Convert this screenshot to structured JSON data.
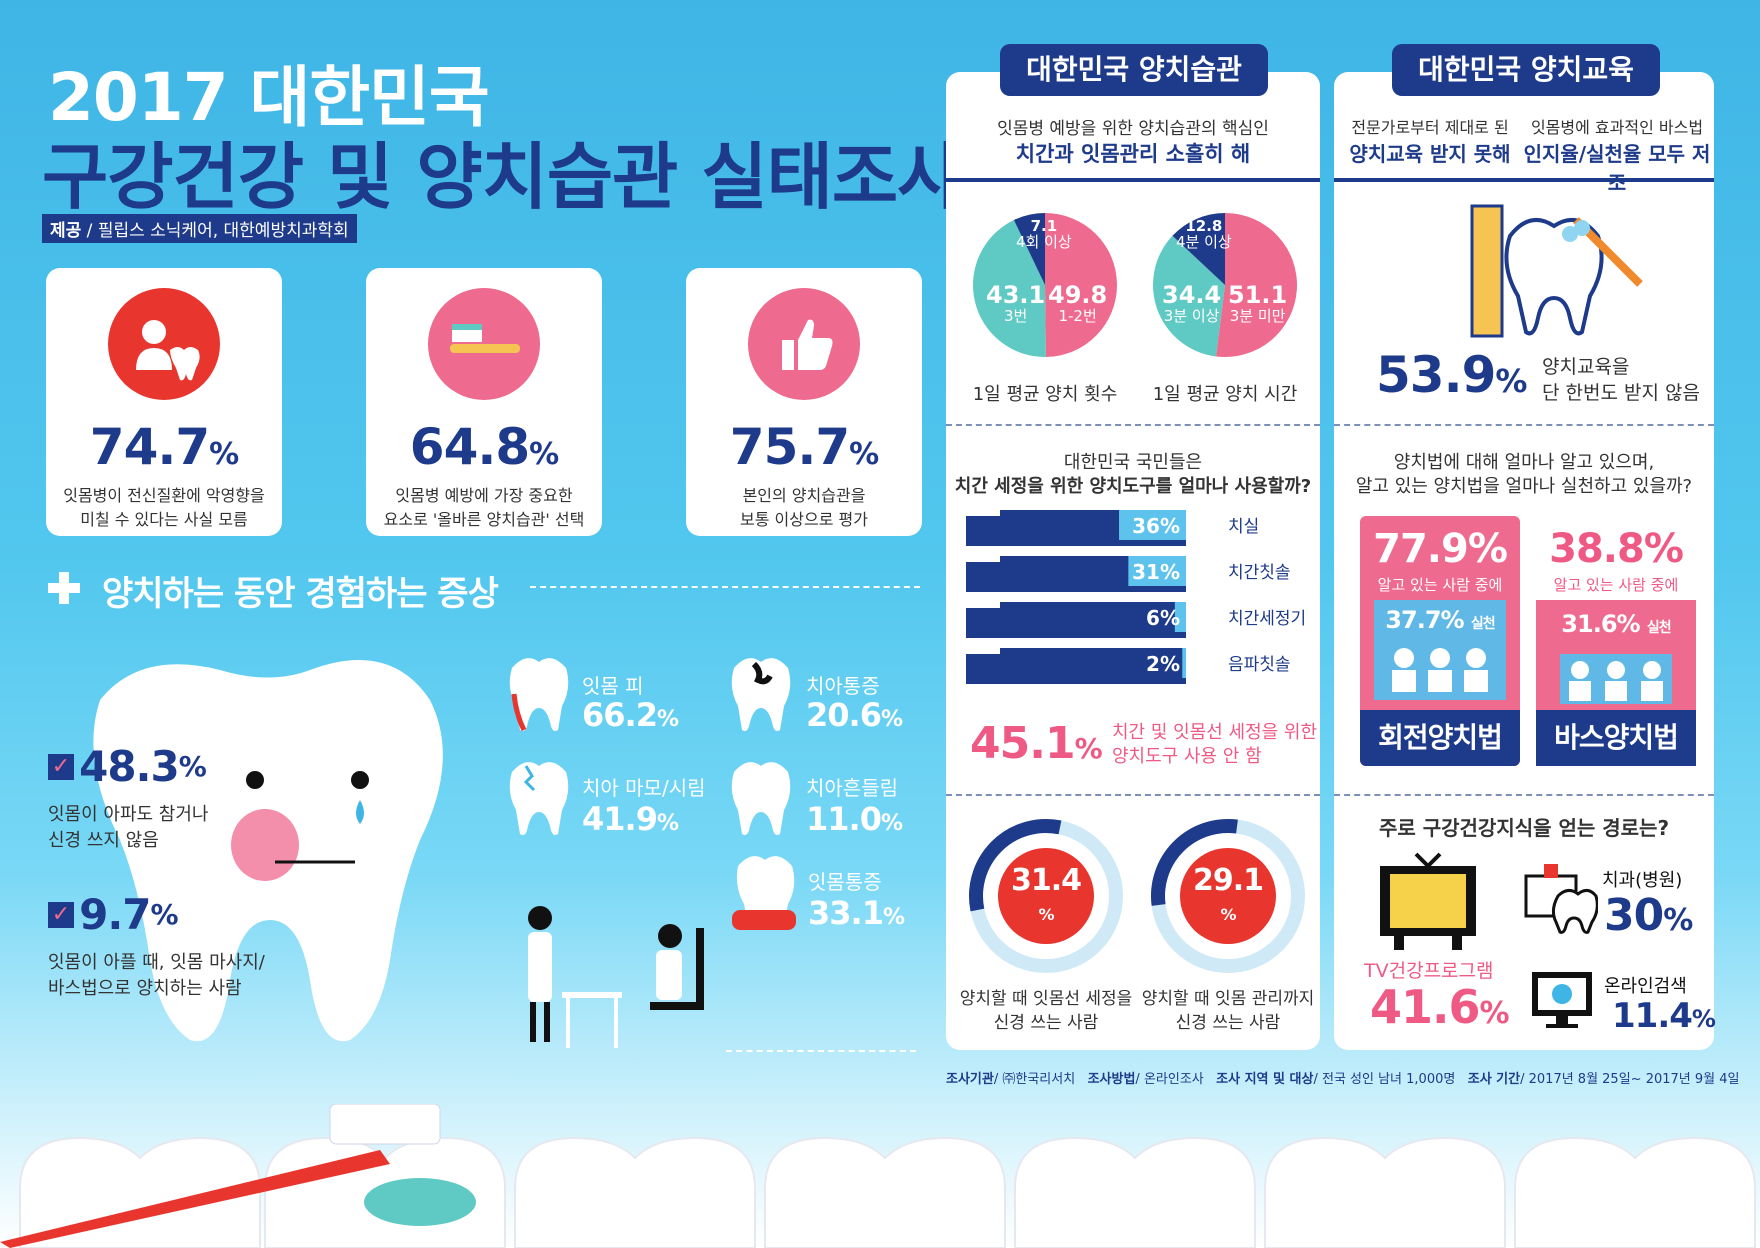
{
  "header": {
    "title_line1": "2017 대한민국",
    "title_line2": "구강건강 및 양치습관 실태조사",
    "source_label": "제공",
    "source_text": "필립스 소닉케어, 대한예방치과학회"
  },
  "stats": [
    {
      "value": "74.7",
      "unit": "%",
      "line1": "잇몸병이 전신질환에 악영향을",
      "line2": "미칠 수 있다는 사실 모름",
      "icon": "person-tooth-icon"
    },
    {
      "value": "64.8",
      "unit": "%",
      "line1": "잇몸병 예방에 가장 중요한",
      "line2": "요소로 '올바른 양치습관' 선택",
      "icon": "toothbrush-icon"
    },
    {
      "value": "75.7",
      "unit": "%",
      "line1": "본인의 양치습관을",
      "line2": "보통 이상으로 평가",
      "icon": "thumbs-up-icon"
    }
  ],
  "symptoms": {
    "heading": "양치하는 동안 경험하는 증상",
    "checks": [
      {
        "value": "48.3",
        "unit": "%",
        "line1": "잇몸이 아파도 참거나",
        "line2": "신경 쓰지 않음"
      },
      {
        "value": "9.7",
        "unit": "%",
        "line1": "잇몸이 아플 때, 잇몸 마사지/",
        "line2": "바스법으로 양치하는 사람"
      }
    ],
    "items": [
      {
        "label": "잇몸 피",
        "value": "66.2",
        "unit": "%"
      },
      {
        "label": "치아통증",
        "value": "20.6",
        "unit": "%"
      },
      {
        "label": "치아 마모/시림",
        "value": "41.9",
        "unit": "%"
      },
      {
        "label": "치아흔들림",
        "value": "11.0",
        "unit": "%"
      },
      {
        "label": "잇몸통증",
        "value": "33.1",
        "unit": "%"
      }
    ]
  },
  "habits": {
    "tab": "대한민국 양치습관",
    "sub1": "잇몸병 예방을 위한 양치습관의 핵심인",
    "sub2": "치간과 잇몸관리 소홀히 해",
    "pie1_caption": "1일 평균 양치 횟수",
    "pie2_caption": "1일 평균 양치 시간",
    "tools_q1": "대한민국 국민들은",
    "tools_q2": "치간 세정을 위한 양치도구를 얼마나 사용할까?",
    "no_tool_value": "45.1",
    "no_tool_unit": "%",
    "no_tool_line1": "치간 및 잇몸선 세정을 위한",
    "no_tool_line2": "양치도구 사용 안 함",
    "donut1_value": "31.4",
    "donut1_line1": "양치할 때 잇몸선 세정을",
    "donut1_line2": "신경 쓰는 사람",
    "donut2_value": "29.1",
    "donut2_line1": "양치할 때 잇몸 관리까지",
    "donut2_line2": "신경 쓰는 사람",
    "donut_unit": "%"
  },
  "education": {
    "tab": "대한민국 양치교육",
    "left1": "전문가로부터 제대로 된",
    "left2": "양치교육 받지 못해",
    "right1": "잇몸병에 효과적인 바스법",
    "right2": "인지율/실천율 모두 저조",
    "stat_value": "53.9",
    "stat_unit": "%",
    "stat_line1": "양치교육을",
    "stat_line2": "단 한번도 받지 않음",
    "q1": "양치법에 대해 얼마나 알고 있으며,",
    "q2": "알고 있는 양치법을 얼마나 실천하고 있을까?",
    "methods": [
      {
        "know": "77.9",
        "know_sub": "알고 있는 사람 중에",
        "practice": "37.7",
        "practice_label": "실천",
        "name": "회전양치법"
      },
      {
        "know": "38.8",
        "know_sub": "알고 있는 사람 중에",
        "practice": "31.6",
        "practice_label": "실천",
        "name": "바스양치법"
      }
    ],
    "path_q": "주로 구강건강지식을 얻는 경로는?",
    "paths": [
      {
        "label": "TV건강프로그램",
        "value": "41.6",
        "unit": "%"
      },
      {
        "label": "치과(병원)",
        "value": "30",
        "unit": "%"
      },
      {
        "label": "온라인검색",
        "value": "11.4",
        "unit": "%"
      }
    ]
  },
  "footer": {
    "k1": "조사기관",
    "v1": "㈜한국리서치",
    "k2": "조사방법",
    "v2": "온라인조사",
    "k3": "조사 지역 및 대상",
    "v3": "전국 성인 남녀 1,000명",
    "k4": "조사 기간",
    "v4": "2017년 8월 25일~ 2017년 9월 4일"
  },
  "chart_data": [
    {
      "type": "pie",
      "title": "1일 평균 양치 횟수",
      "slices": [
        {
          "label": "1-2번",
          "value": 49.8
        },
        {
          "label": "3번",
          "value": 43.1
        },
        {
          "label": "4회 이상",
          "value": 7.1
        }
      ],
      "colors": [
        "#ef6a8f",
        "#5fc9c4",
        "#1e3a8a"
      ]
    },
    {
      "type": "pie",
      "title": "1일 평균 양치 시간",
      "slices": [
        {
          "label": "3분 미만",
          "value": 51.1
        },
        {
          "label": "3분 이상",
          "value": 34.4
        },
        {
          "label": "4분 이상",
          "value": 12.8
        }
      ],
      "colors": [
        "#ef6a8f",
        "#5fc9c4",
        "#1e3a8a"
      ]
    },
    {
      "type": "bar",
      "title": "치간 세정을 위한 양치도구를 얼마나 사용할까?",
      "categories": [
        "치실",
        "치간칫솔",
        "치간세정기",
        "음파칫솔"
      ],
      "values": [
        36,
        31,
        6,
        2
      ],
      "unit": "%",
      "xlim": [
        0,
        100
      ]
    },
    {
      "type": "pie",
      "title": "양치할 때 잇몸선 세정을 신경 쓰는 사람",
      "slices": [
        {
          "label": "",
          "value": 31.4
        }
      ]
    },
    {
      "type": "pie",
      "title": "양치할 때 잇몸 관리까지 신경 쓰는 사람",
      "slices": [
        {
          "label": "",
          "value": 29.1
        }
      ]
    }
  ]
}
